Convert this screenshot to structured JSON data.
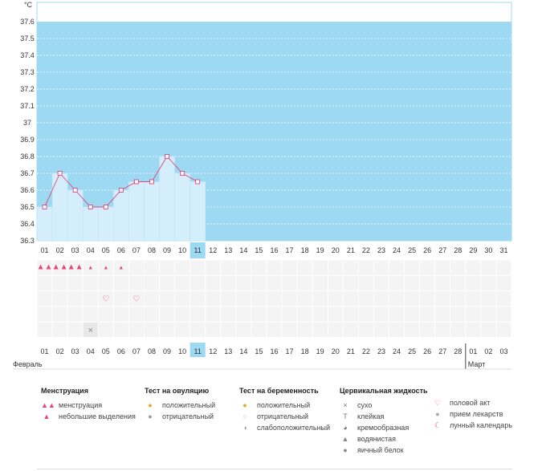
{
  "chart_data": {
    "type": "line",
    "y_unit": "°C",
    "ylim": [
      36.3,
      37.6
    ],
    "y_ticks": [
      "37.6",
      "37.5",
      "37.4",
      "37.3",
      "37.2",
      "37.1",
      "37",
      "36.9",
      "36.8",
      "36.7",
      "36.6",
      "36.5",
      "36.4",
      "36.3"
    ],
    "days_top": [
      "01",
      "02",
      "03",
      "04",
      "05",
      "06",
      "07",
      "08",
      "09",
      "10",
      "11",
      "12",
      "13",
      "14",
      "15",
      "16",
      "17",
      "18",
      "19",
      "20",
      "21",
      "22",
      "23",
      "24",
      "25",
      "26",
      "27",
      "28",
      "29",
      "30",
      "31"
    ],
    "days_bottom": [
      "01",
      "02",
      "03",
      "04",
      "05",
      "06",
      "07",
      "08",
      "09",
      "10",
      "11",
      "12",
      "13",
      "14",
      "15",
      "16",
      "17",
      "18",
      "19",
      "20",
      "21",
      "22",
      "23",
      "24",
      "25",
      "26",
      "27",
      "28",
      "01",
      "02",
      "03"
    ],
    "red_days_bottom": [
      1,
      2,
      8,
      9,
      15,
      16,
      22,
      23,
      29,
      30
    ],
    "selected_day_index": 10,
    "temperatures": [
      36.5,
      36.7,
      36.6,
      36.5,
      36.5,
      36.6,
      36.65,
      36.65,
      36.8,
      36.7,
      36.65
    ],
    "menstruation": [
      "heavy",
      "heavy",
      "heavy",
      "light",
      "light",
      "light",
      null,
      null,
      null,
      null,
      null
    ],
    "intercourse_days": [
      4,
      6
    ],
    "dry_days": [
      3
    ],
    "month_left": "Февраль",
    "month_right": "Март",
    "colors": {
      "fill": "#9dd9f3",
      "bar": "#d5eefb",
      "line": "#e0457b",
      "selected": "#9dd9f3",
      "red": "#e0457b"
    }
  },
  "legend": {
    "menstruation": {
      "title": "Менструация",
      "items": [
        "менструация",
        "небольшие выделения"
      ]
    },
    "ovulation": {
      "title": "Тест на овуляцию",
      "items": [
        "положительный",
        "отрицательный"
      ]
    },
    "pregnancy": {
      "title": "Тест на беременность",
      "items": [
        "положительный",
        "отрицательный",
        "слабоположительный"
      ]
    },
    "cervical": {
      "title": "Цервикальная жидкость",
      "items": [
        "сухо",
        "клейкая",
        "кремообразная",
        "водянистая",
        "яичный белок"
      ]
    },
    "other": {
      "items": [
        "половой акт",
        "прием лекарств",
        "лунный календарь"
      ]
    }
  }
}
